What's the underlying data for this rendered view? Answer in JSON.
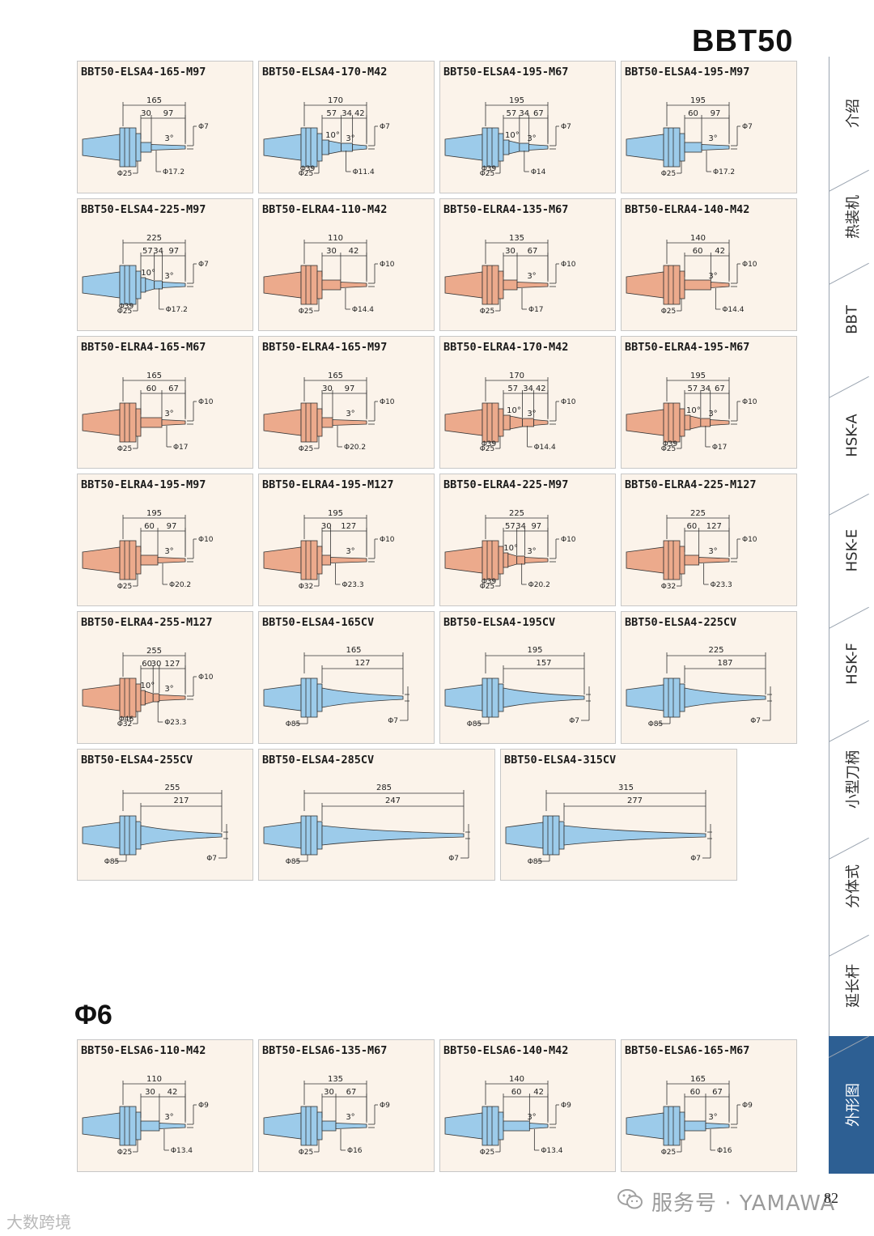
{
  "page": {
    "title": "BBT50",
    "section_title": "Φ6",
    "page_number": "82",
    "footer_watermark": "服务号 · YAMAWA",
    "corner_watermark": "大数跨境"
  },
  "colors": {
    "blue_holder": "#9ccbea",
    "red_holder": "#ecaa8c",
    "card_bg": "#fbf3ea",
    "tab_active": "#2d5f93"
  },
  "tabs": [
    {
      "label": "介绍",
      "active": false
    },
    {
      "label": "热装机",
      "active": false
    },
    {
      "label": "BBT",
      "active": false
    },
    {
      "label": "HSK-A",
      "active": false
    },
    {
      "label": "HSK-E",
      "active": false
    },
    {
      "label": "HSK-F",
      "active": false
    },
    {
      "label": "小型刀柄",
      "active": false
    },
    {
      "label": "分体式",
      "active": false
    },
    {
      "label": "延长杆",
      "active": false
    },
    {
      "label": "外形图",
      "active": true
    }
  ],
  "cards": [
    {
      "name": "BBT50-ELSA4-165-M97",
      "color": "blue",
      "type": "std",
      "total": "165",
      "segs": [
        "30",
        "97"
      ],
      "angle1": "",
      "angle2": "3°",
      "tip": "Φ7",
      "d_collar": "",
      "d_body": "Φ25",
      "d_shank": "Φ17.2"
    },
    {
      "name": "BBT50-ELSA4-170-M42",
      "color": "blue",
      "type": "std",
      "total": "170",
      "segs": [
        "57",
        "34",
        "42"
      ],
      "angle1": "10°",
      "angle2": "3°",
      "tip": "Φ7",
      "d_collar": "Φ39",
      "d_body": "Φ25",
      "d_shank": "Φ11.4"
    },
    {
      "name": "BBT50-ELSA4-195-M67",
      "color": "blue",
      "type": "std",
      "total": "195",
      "segs": [
        "57",
        "34",
        "67"
      ],
      "angle1": "10°",
      "angle2": "3°",
      "tip": "Φ7",
      "d_collar": "Φ39",
      "d_body": "Φ25",
      "d_shank": "Φ14"
    },
    {
      "name": "BBT50-ELSA4-195-M97",
      "color": "blue",
      "type": "std",
      "total": "195",
      "segs": [
        "60",
        "97"
      ],
      "angle1": "",
      "angle2": "3°",
      "tip": "Φ7",
      "d_collar": "",
      "d_body": "Φ25",
      "d_shank": "Φ17.2"
    },
    {
      "name": "BBT50-ELSA4-225-M97",
      "color": "blue",
      "type": "std",
      "total": "225",
      "segs": [
        "57",
        "34",
        "97"
      ],
      "angle1": "10°",
      "angle2": "3°",
      "tip": "Φ7",
      "d_collar": "Φ39",
      "d_body": "Φ25",
      "d_shank": "Φ17.2"
    },
    {
      "name": "BBT50-ELRA4-110-M42",
      "color": "red",
      "type": "std",
      "total": "110",
      "segs": [
        "30",
        "42"
      ],
      "angle1": "",
      "angle2": "",
      "tip": "Φ10",
      "d_collar": "",
      "d_body": "Φ25",
      "d_shank": "Φ14.4"
    },
    {
      "name": "BBT50-ELRA4-135-M67",
      "color": "red",
      "type": "std",
      "total": "135",
      "segs": [
        "30",
        "67"
      ],
      "angle1": "",
      "angle2": "3°",
      "tip": "Φ10",
      "d_collar": "",
      "d_body": "Φ25",
      "d_shank": "Φ17"
    },
    {
      "name": "BBT50-ELRA4-140-M42",
      "color": "red",
      "type": "std",
      "total": "140",
      "segs": [
        "60",
        "42"
      ],
      "angle1": "",
      "angle2": "3°",
      "tip": "Φ10",
      "d_collar": "",
      "d_body": "Φ25",
      "d_shank": "Φ14.4"
    },
    {
      "name": "BBT50-ELRA4-165-M67",
      "color": "red",
      "type": "std",
      "total": "165",
      "segs": [
        "60",
        "67"
      ],
      "angle1": "",
      "angle2": "3°",
      "tip": "Φ10",
      "d_collar": "",
      "d_body": "Φ25",
      "d_shank": "Φ17"
    },
    {
      "name": "BBT50-ELRA4-165-M97",
      "color": "red",
      "type": "std",
      "total": "165",
      "segs": [
        "30",
        "97"
      ],
      "angle1": "",
      "angle2": "3°",
      "tip": "Φ10",
      "d_collar": "",
      "d_body": "Φ25",
      "d_shank": "Φ20.2"
    },
    {
      "name": "BBT50-ELRA4-170-M42",
      "color": "red",
      "type": "std",
      "total": "170",
      "segs": [
        "57",
        "34",
        "42"
      ],
      "angle1": "10°",
      "angle2": "3°",
      "tip": "Φ10",
      "d_collar": "Φ39",
      "d_body": "Φ25",
      "d_shank": "Φ14.4"
    },
    {
      "name": "BBT50-ELRA4-195-M67",
      "color": "red",
      "type": "std",
      "total": "195",
      "segs": [
        "57",
        "34",
        "67"
      ],
      "angle1": "10°",
      "angle2": "3°",
      "tip": "Φ10",
      "d_collar": "Φ39",
      "d_body": "Φ25",
      "d_shank": "Φ17"
    },
    {
      "name": "BBT50-ELRA4-195-M97",
      "color": "red",
      "type": "std",
      "total": "195",
      "segs": [
        "60",
        "97"
      ],
      "angle1": "",
      "angle2": "3°",
      "tip": "Φ10",
      "d_collar": "",
      "d_body": "Φ25",
      "d_shank": "Φ20.2"
    },
    {
      "name": "BBT50-ELRA4-195-M127",
      "color": "red",
      "type": "std",
      "total": "195",
      "segs": [
        "30",
        "127"
      ],
      "angle1": "",
      "angle2": "3°",
      "tip": "Φ10",
      "d_collar": "",
      "d_body": "Φ32",
      "d_shank": "Φ23.3"
    },
    {
      "name": "BBT50-ELRA4-225-M97",
      "color": "red",
      "type": "std",
      "total": "225",
      "segs": [
        "57",
        "34",
        "97"
      ],
      "angle1": "10°",
      "angle2": "3°",
      "tip": "Φ10",
      "d_collar": "Φ39",
      "d_body": "Φ25",
      "d_shank": "Φ20.2"
    },
    {
      "name": "BBT50-ELRA4-225-M127",
      "color": "red",
      "type": "std",
      "total": "225",
      "segs": [
        "60",
        "127"
      ],
      "angle1": "",
      "angle2": "3°",
      "tip": "Φ10",
      "d_collar": "",
      "d_body": "Φ32",
      "d_shank": "Φ23.3"
    },
    {
      "name": "BBT50-ELRA4-255-M127",
      "color": "red",
      "type": "std",
      "total": "255",
      "segs": [
        "60",
        "30",
        "127"
      ],
      "angle1": "10°",
      "angle2": "3°",
      "tip": "Φ10",
      "d_collar": "Φ46",
      "d_body": "Φ32",
      "d_shank": "Φ23.3"
    },
    {
      "name": "BBT50-ELSA4-165CV",
      "color": "blue",
      "type": "cv",
      "total": "165",
      "segs": [
        "127"
      ],
      "tip": "Φ7",
      "d_body": "Φ85"
    },
    {
      "name": "BBT50-ELSA4-195CV",
      "color": "blue",
      "type": "cv",
      "total": "195",
      "segs": [
        "157"
      ],
      "tip": "Φ7",
      "d_body": "Φ85"
    },
    {
      "name": "BBT50-ELSA4-225CV",
      "color": "blue",
      "type": "cv",
      "total": "225",
      "segs": [
        "187"
      ],
      "tip": "Φ7",
      "d_body": "Φ85"
    },
    {
      "name": "BBT50-ELSA4-255CV",
      "color": "blue",
      "type": "cv",
      "total": "255",
      "segs": [
        "217"
      ],
      "tip": "Φ7",
      "d_body": "Φ85"
    },
    {
      "name": "BBT50-ELSA4-285CV",
      "color": "blue",
      "type": "cv",
      "total": "285",
      "segs": [
        "247"
      ],
      "tip": "Φ7",
      "d_body": "Φ85"
    },
    {
      "name": "BBT50-ELSA4-315CV",
      "color": "blue",
      "type": "cv",
      "total": "315",
      "segs": [
        "277"
      ],
      "tip": "Φ7",
      "d_body": "Φ85"
    },
    {
      "name": "BBT50-ELSA6-110-M42",
      "color": "blue",
      "type": "std",
      "total": "110",
      "segs": [
        "30",
        "42"
      ],
      "angle1": "",
      "angle2": "3°",
      "tip": "Φ9",
      "d_collar": "",
      "d_body": "Φ25",
      "d_shank": "Φ13.4"
    },
    {
      "name": "BBT50-ELSA6-135-M67",
      "color": "blue",
      "type": "std",
      "total": "135",
      "segs": [
        "30",
        "67"
      ],
      "angle1": "",
      "angle2": "3°",
      "tip": "Φ9",
      "d_collar": "",
      "d_body": "Φ25",
      "d_shank": "Φ16"
    },
    {
      "name": "BBT50-ELSA6-140-M42",
      "color": "blue",
      "type": "std",
      "total": "140",
      "segs": [
        "60",
        "42"
      ],
      "angle1": "",
      "angle2": "3°",
      "tip": "Φ9",
      "d_collar": "",
      "d_body": "Φ25",
      "d_shank": "Φ13.4"
    },
    {
      "name": "BBT50-ELSA6-165-M67",
      "color": "blue",
      "type": "std",
      "total": "165",
      "segs": [
        "60",
        "67"
      ],
      "angle1": "",
      "angle2": "3°",
      "tip": "Φ9",
      "d_collar": "",
      "d_body": "Φ25",
      "d_shank": "Φ16"
    }
  ]
}
